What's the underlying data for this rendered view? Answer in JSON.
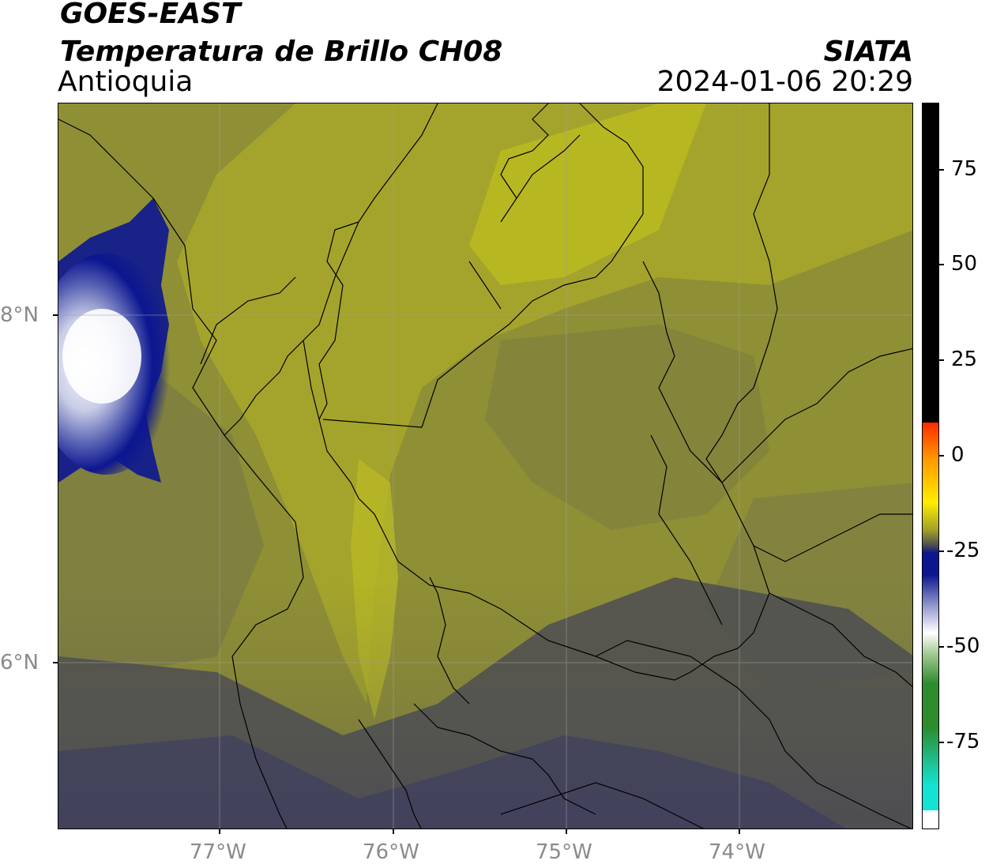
{
  "header": {
    "satellite": "GOES-EAST",
    "product": "Temperatura de Brillo CH08",
    "region": "Antioquia",
    "agency": "SIATA",
    "datetime": "2024-01-06 20:29"
  },
  "map": {
    "lat_ticks": [
      "8°N",
      "6°N"
    ],
    "lon_ticks": [
      "77°W",
      "76°W",
      "75°W",
      "74°W"
    ],
    "gridlines": true
  },
  "colorbar": {
    "tick_labels": [
      "75",
      "50",
      "25",
      "0",
      "-25",
      "-50",
      "-75"
    ],
    "colors": {
      "black": "#000000",
      "red": "#ff2a00",
      "orange": "#ff9800",
      "yellow": "#ffee00",
      "olive": "#9c9c2a",
      "gray": "#4a4a52",
      "navy": "#0c1690",
      "white": "#ffffff",
      "green": "#2e8b2e",
      "cyan": "#14e2d2"
    }
  }
}
